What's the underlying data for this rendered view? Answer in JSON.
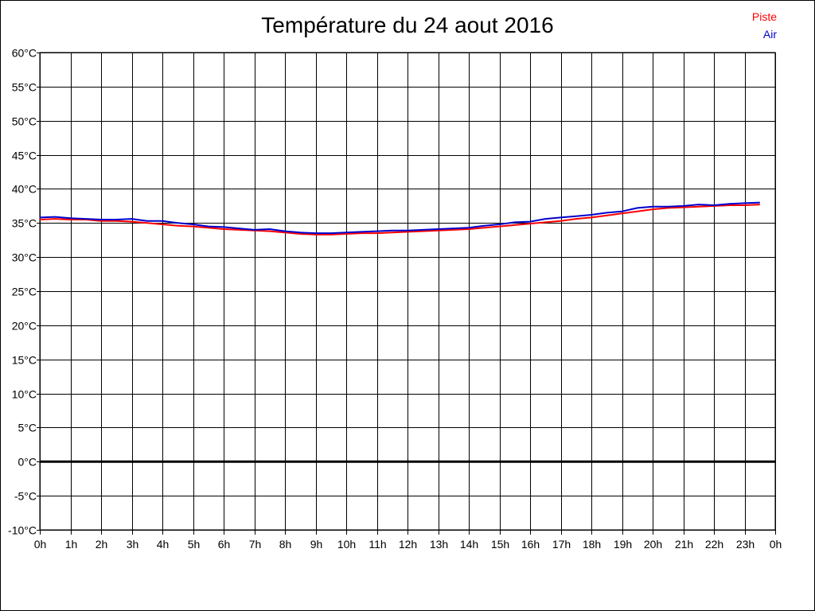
{
  "chart_data": {
    "type": "line",
    "title": "Température du 24 aout 2016",
    "xlabel": "",
    "ylabel": "",
    "x_ticks": [
      "0h",
      "1h",
      "2h",
      "3h",
      "4h",
      "5h",
      "6h",
      "7h",
      "8h",
      "9h",
      "10h",
      "11h",
      "12h",
      "13h",
      "14h",
      "15h",
      "16h",
      "17h",
      "18h",
      "19h",
      "20h",
      "21h",
      "22h",
      "23h",
      "0h"
    ],
    "y_ticks": [
      "-10°C",
      "-5°C",
      "0°C",
      "5°C",
      "10°C",
      "15°C",
      "20°C",
      "25°C",
      "30°C",
      "35°C",
      "40°C",
      "45°C",
      "50°C",
      "55°C",
      "60°C"
    ],
    "xlim": [
      0,
      24
    ],
    "ylim": [
      -10,
      60
    ],
    "grid": true,
    "legend_position": "top-right",
    "zero_line": true,
    "x": [
      0,
      0.5,
      1,
      1.5,
      2,
      2.5,
      3,
      3.5,
      4,
      4.5,
      5,
      5.5,
      6,
      6.5,
      7,
      7.5,
      8,
      8.5,
      9,
      9.5,
      10,
      10.5,
      11,
      11.5,
      12,
      12.5,
      13,
      13.5,
      14,
      14.5,
      15,
      15.5,
      16,
      16.5,
      17,
      17.5,
      18,
      18.5,
      19,
      19.5,
      20,
      20.5,
      21,
      21.5,
      22,
      22.5,
      23,
      23.5
    ],
    "series": [
      {
        "name": "Piste",
        "color": "#ff0000",
        "values": [
          35.5,
          35.6,
          35.5,
          35.5,
          35.3,
          35.3,
          35.2,
          35.0,
          34.8,
          34.6,
          34.5,
          34.3,
          34.1,
          34.0,
          33.9,
          33.8,
          33.6,
          33.4,
          33.3,
          33.3,
          33.4,
          33.5,
          33.5,
          33.6,
          33.7,
          33.8,
          33.9,
          34.0,
          34.1,
          34.3,
          34.5,
          34.7,
          34.9,
          35.1,
          35.3,
          35.6,
          35.8,
          36.1,
          36.4,
          36.7,
          37.0,
          37.2,
          37.3,
          37.4,
          37.5,
          37.6,
          37.6,
          37.7
        ]
      },
      {
        "name": "Air",
        "color": "#0000cc",
        "values": [
          35.8,
          35.9,
          35.7,
          35.6,
          35.5,
          35.5,
          35.6,
          35.3,
          35.3,
          35.0,
          34.8,
          34.5,
          34.4,
          34.2,
          34.0,
          34.1,
          33.8,
          33.6,
          33.5,
          33.5,
          33.6,
          33.7,
          33.8,
          33.9,
          33.9,
          34.0,
          34.1,
          34.2,
          34.3,
          34.6,
          34.8,
          35.1,
          35.2,
          35.6,
          35.8,
          36.0,
          36.2,
          36.5,
          36.7,
          37.2,
          37.4,
          37.4,
          37.5,
          37.7,
          37.6,
          37.8,
          37.9,
          38.0
        ]
      }
    ]
  }
}
